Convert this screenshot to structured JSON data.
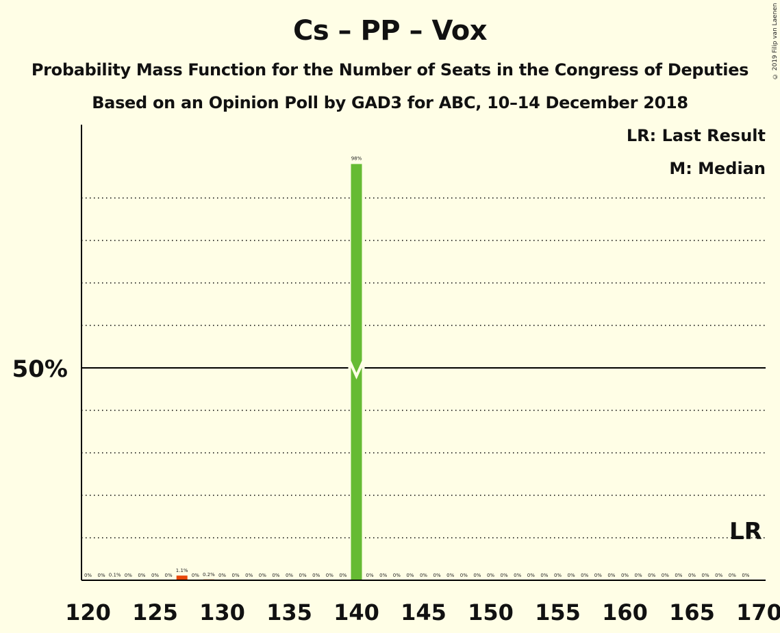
{
  "header": {
    "title": "Cs – PP – Vox",
    "subtitle1": "Probability Mass Function for the Number of Seats in the Congress of Deputies",
    "subtitle2": "Based on an Opinion Poll by GAD3 for ABC, 10–14 December 2018",
    "copyright": "© 2019 Filip van Laenen"
  },
  "legend": {
    "last_result": "LR: Last Result",
    "median": "M: Median"
  },
  "chart_data": {
    "type": "bar",
    "x_range": [
      120,
      170
    ],
    "ylim": [
      0,
      100
    ],
    "y_tick_label": "50%",
    "y_tick_value": 50,
    "x_tick_labels": [
      "120",
      "125",
      "130",
      "135",
      "140",
      "145",
      "150",
      "155",
      "160",
      "165",
      "170"
    ],
    "seats": [
      120,
      121,
      122,
      123,
      124,
      125,
      126,
      127,
      128,
      129,
      130,
      131,
      132,
      133,
      134,
      135,
      136,
      137,
      138,
      139,
      140,
      141,
      142,
      143,
      144,
      145,
      146,
      147,
      148,
      149,
      150,
      151,
      152,
      153,
      154,
      155,
      156,
      157,
      158,
      159,
      160,
      161,
      162,
      163,
      164,
      165,
      166,
      167,
      168,
      169
    ],
    "values": [
      0,
      0,
      0.1,
      0,
      0,
      0,
      0,
      1.1,
      0,
      0.2,
      0,
      0,
      0,
      0,
      0,
      0,
      0,
      0,
      0,
      0,
      98,
      0,
      0,
      0,
      0,
      0,
      0,
      0,
      0,
      0,
      0,
      0,
      0,
      0,
      0,
      0,
      0,
      0,
      0,
      0,
      0,
      0,
      0,
      0,
      0,
      0,
      0,
      0,
      0,
      0
    ],
    "labels": [
      "0%",
      "0%",
      "0.1%",
      "0%",
      "0%",
      "0%",
      "0%",
      "1.1%",
      "0%",
      "0.2%",
      "0%",
      "0%",
      "0%",
      "0%",
      "0%",
      "0%",
      "0%",
      "0%",
      "0%",
      "0%",
      "98%",
      "0%",
      "0%",
      "0%",
      "0%",
      "0%",
      "0%",
      "0%",
      "0%",
      "0%",
      "0%",
      "0%",
      "0%",
      "0%",
      "0%",
      "0%",
      "0%",
      "0%",
      "0%",
      "0%",
      "0%",
      "0%",
      "0%",
      "0%",
      "0%",
      "0%",
      "0%",
      "0%",
      "0%",
      "0%"
    ],
    "median": 140,
    "last_result": 169,
    "last_result_label": "LR",
    "colors": {
      "median_bar": "#66BB33",
      "other_bar": "#E8470A",
      "background": "#FFFEE6",
      "axis": "#000000"
    }
  }
}
